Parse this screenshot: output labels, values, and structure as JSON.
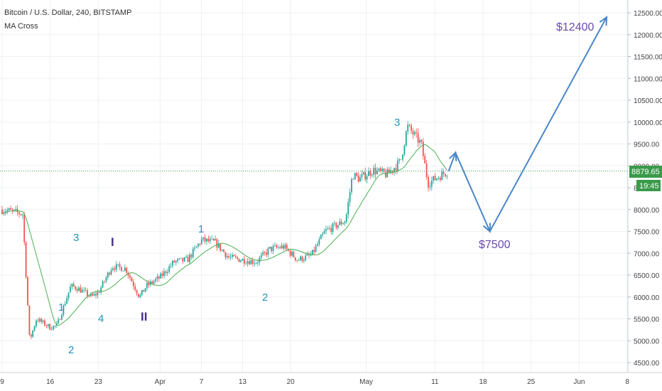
{
  "legend": {
    "title": "Bitcoin / U.S. Dollar, 240, BITSTAMP",
    "indicator": "MA Cross"
  },
  "price_axis": {
    "ticks": [
      "12500.00",
      "12000.00",
      "11500.00",
      "11000.00",
      "10500.00",
      "10000.00",
      "9500.00",
      "9000.00",
      "8500.00",
      "8000.00",
      "7500.00",
      "7000.00",
      "6500.00",
      "6000.00",
      "5500.00",
      "5000.00",
      "4500.00"
    ],
    "tick_values": [
      12500,
      12000,
      11500,
      11000,
      10500,
      10000,
      9500,
      9000,
      8500,
      8000,
      7500,
      7000,
      6500,
      6000,
      5500,
      5000,
      4500
    ],
    "last_price": "8879.65",
    "countdown": "19:45"
  },
  "time_axis": {
    "labels": [
      "9",
      "16",
      "23",
      "Apr",
      "7",
      "13",
      "20",
      "May",
      "11",
      "18",
      "25",
      "Jun",
      "8"
    ]
  },
  "annotations": {
    "wave_1": "1",
    "wave_2": "2",
    "wave_3": "3",
    "wave_4": "4",
    "wave_I": "I",
    "wave_II": "II",
    "wave_1b": "1",
    "wave_2b": "2",
    "wave_3b": "3",
    "target_low": "$7500",
    "target_high": "$12400"
  },
  "colors": {
    "up": "#26a69a",
    "down": "#ef5350",
    "ma": "#4caf50",
    "projection": "#4a86c8",
    "wave_teal": "#2196b6",
    "wave_purple": "#4a2d8a",
    "target_text": "#6a4ab0",
    "price_line": "#3a9a4a",
    "grid": "#eef0f3"
  },
  "chart_data": {
    "type": "candlestick",
    "symbol": "Bitcoin / U.S. Dollar",
    "interval": "240",
    "exchange": "BITSTAMP",
    "ylim": [
      4400,
      12700
    ],
    "x": [
      "Mar 9",
      "Mar 12",
      "Mar 13",
      "Mar 14",
      "Mar 16",
      "Mar 17",
      "Mar 19",
      "Mar 20",
      "Mar 22",
      "Mar 23",
      "Mar 25",
      "Mar 27",
      "Mar 29",
      "Mar 30",
      "Apr 1",
      "Apr 3",
      "Apr 5",
      "Apr 7",
      "Apr 9",
      "Apr 11",
      "Apr 13",
      "Apr 15",
      "Apr 17",
      "Apr 19",
      "Apr 21",
      "Apr 23",
      "Apr 25",
      "Apr 28",
      "Apr 29",
      "Apr 30",
      "May 2",
      "May 4",
      "May 6",
      "May 7",
      "May 8",
      "May 9",
      "May 10",
      "May 11",
      "May 12",
      "May 13"
    ],
    "close": [
      8000,
      7900,
      5000,
      5500,
      5300,
      5350,
      6250,
      6200,
      6000,
      6100,
      6700,
      6650,
      6000,
      6250,
      6450,
      6800,
      6850,
      7300,
      7250,
      6900,
      6850,
      6800,
      7100,
      7150,
      6850,
      6950,
      7500,
      7750,
      8800,
      8700,
      8900,
      8800,
      9100,
      9900,
      9700,
      9500,
      8600,
      8700,
      8800,
      8880
    ],
    "ma_fast_label": "",
    "projection": {
      "points": [
        {
          "x": "May 13",
          "y": 8880
        },
        {
          "x": "May 14",
          "y": 9300
        },
        {
          "x": "May 19",
          "y": 7500
        },
        {
          "x": "Jun 5",
          "y": 12400
        }
      ]
    },
    "levels": [
      {
        "label": "$7500",
        "value": 7500
      },
      {
        "label": "$12400",
        "value": 12400
      }
    ]
  }
}
